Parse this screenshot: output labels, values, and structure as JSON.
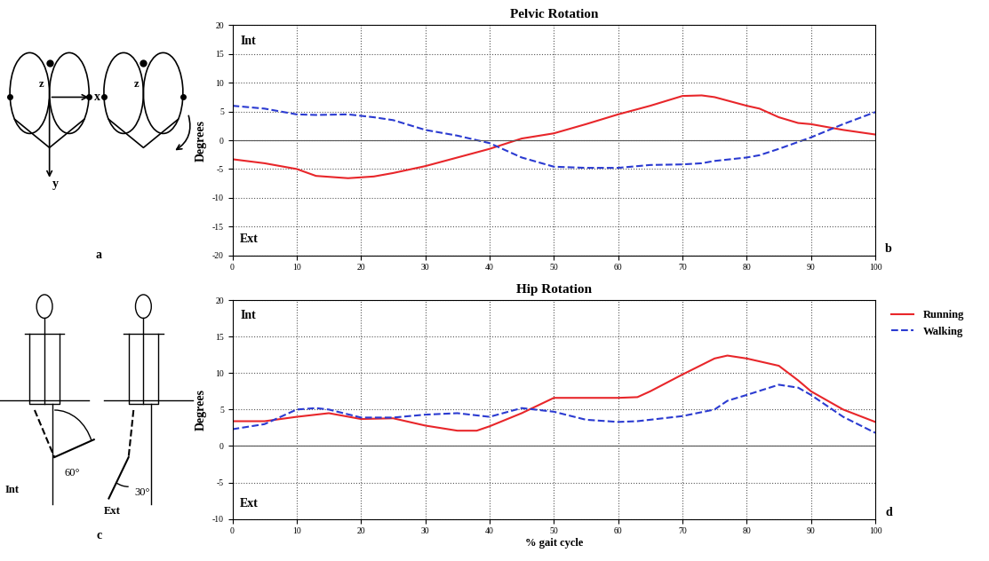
{
  "chart_data": [
    {
      "type": "line",
      "title": "Pelvic Rotation",
      "ylabel": "Degrees",
      "annotations": [
        "Int",
        "Ext"
      ],
      "x": [
        0,
        5,
        10,
        13,
        18,
        22,
        25,
        30,
        35,
        40,
        45,
        50,
        55,
        60,
        65,
        70,
        73,
        75,
        80,
        82,
        85,
        88,
        90,
        95,
        100
      ],
      "series": [
        {
          "name": "Running",
          "color": "#e8262a",
          "line_style": "solid",
          "values": [
            -3.3,
            -4,
            -5,
            -6.2,
            -6.6,
            -6.3,
            -5.7,
            -4.5,
            -3,
            -1.5,
            0.3,
            1.2,
            2.8,
            4.5,
            6,
            7.7,
            7.8,
            7.5,
            6,
            5.5,
            4,
            3,
            2.8,
            1.8,
            1
          ]
        },
        {
          "name": "Walking",
          "color": "#2b3bd1",
          "line_style": "dashed",
          "values": [
            6,
            5.5,
            4.5,
            4.4,
            4.5,
            4.0,
            3.5,
            1.8,
            0.8,
            -0.5,
            -3,
            -4.6,
            -4.8,
            -4.8,
            -4.3,
            -4.2,
            -4.0,
            -3.6,
            -3,
            -2.6,
            -1.5,
            -0.3,
            0.5,
            2.8,
            4.9
          ]
        }
      ],
      "xlim": [
        0,
        100
      ],
      "xticks": [
        0,
        10,
        20,
        30,
        40,
        50,
        60,
        70,
        80,
        90,
        100
      ],
      "ylim": [
        -20,
        20
      ],
      "yticks": [
        -20,
        -15,
        -10,
        -5,
        0,
        5,
        10,
        15,
        20
      ],
      "grid": true
    },
    {
      "type": "line",
      "title": "Hip Rotation",
      "ylabel": "Degrees",
      "xlabel": "% gait cycle",
      "annotations": [
        "Int",
        "Ext"
      ],
      "x": [
        0,
        5,
        10,
        13,
        15,
        20,
        25,
        30,
        35,
        38,
        40,
        45,
        50,
        55,
        60,
        63,
        65,
        70,
        75,
        77,
        80,
        85,
        88,
        90,
        95,
        100
      ],
      "series": [
        {
          "name": "Running",
          "color": "#e8262a",
          "line_style": "solid",
          "values": [
            3.4,
            3.4,
            4,
            4.3,
            4.5,
            3.7,
            3.8,
            2.8,
            2.1,
            2.1,
            2.7,
            4.5,
            6.6,
            6.6,
            6.6,
            6.7,
            7.5,
            9.8,
            12,
            12.4,
            12,
            11,
            9,
            7.5,
            5,
            3.3
          ]
        },
        {
          "name": "Walking",
          "color": "#2b3bd1",
          "line_style": "dashed",
          "values": [
            2.3,
            3,
            5,
            5.2,
            5,
            3.9,
            3.9,
            4.3,
            4.5,
            4.2,
            4,
            5.2,
            4.7,
            3.6,
            3.3,
            3.4,
            3.6,
            4.1,
            5,
            6.2,
            7,
            8.4,
            8,
            7,
            4,
            1.8
          ]
        }
      ],
      "xlim": [
        0,
        100
      ],
      "xticks": [
        0,
        10,
        20,
        30,
        40,
        50,
        60,
        70,
        80,
        90,
        100
      ],
      "ylim": [
        -10,
        20
      ],
      "yticks": [
        -10,
        -5,
        0,
        5,
        10,
        15,
        20
      ],
      "grid": true,
      "legend": "upper left"
    }
  ],
  "diagrams": {
    "panel_labels": [
      "a",
      "b",
      "c",
      "d"
    ],
    "pelvis_axes": [
      "x",
      "y",
      "z",
      "z"
    ],
    "hip_angles": [
      "60°",
      "30°"
    ],
    "hip_directions": [
      "Int",
      "Ext"
    ]
  }
}
